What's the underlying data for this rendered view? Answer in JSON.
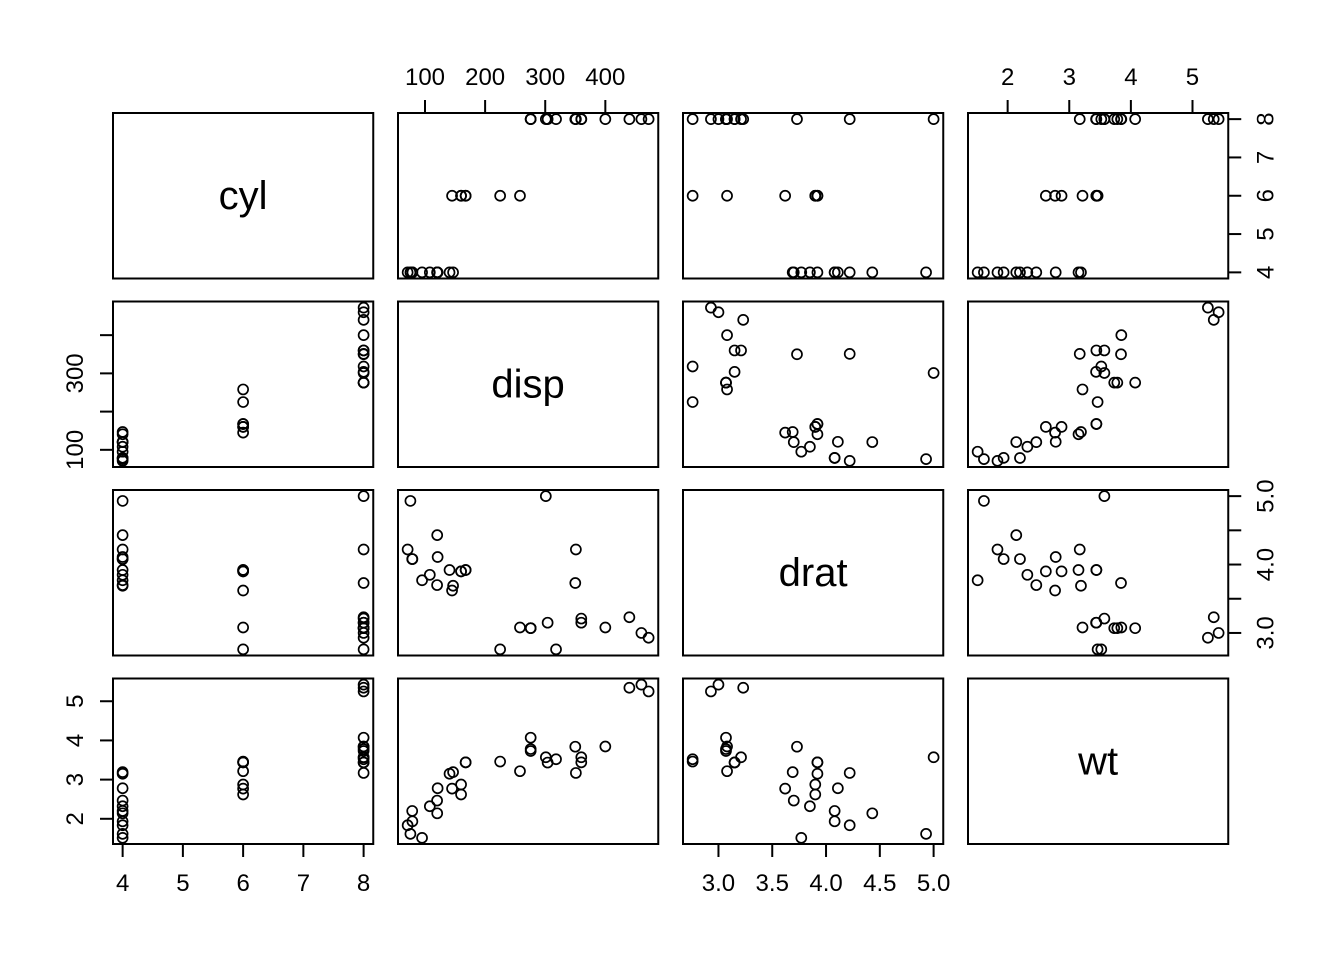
{
  "chart_data": {
    "type": "scatter",
    "layout": "pairs-matrix-4x4",
    "title": "",
    "variables": [
      "cyl",
      "disp",
      "drat",
      "wt"
    ],
    "n_observations": 32,
    "series": {
      "cyl": [
        6,
        6,
        4,
        6,
        8,
        6,
        8,
        4,
        4,
        6,
        6,
        8,
        8,
        8,
        8,
        8,
        8,
        4,
        4,
        4,
        4,
        8,
        8,
        8,
        8,
        4,
        4,
        4,
        8,
        6,
        8,
        4
      ],
      "disp": [
        160,
        160,
        108,
        258,
        360,
        225,
        360,
        146.7,
        140.8,
        167.6,
        167.6,
        275.8,
        275.8,
        275.8,
        472,
        460,
        440,
        78.7,
        75.7,
        71.1,
        120.1,
        318,
        304,
        350,
        400,
        79,
        120.3,
        95.1,
        351,
        145,
        301,
        121
      ],
      "drat": [
        3.9,
        3.9,
        3.85,
        3.08,
        3.15,
        2.76,
        3.21,
        3.69,
        3.92,
        3.92,
        3.92,
        3.07,
        3.07,
        3.07,
        2.93,
        3.0,
        3.23,
        4.08,
        4.93,
        4.22,
        3.7,
        2.76,
        3.15,
        3.73,
        3.08,
        4.08,
        4.43,
        3.77,
        4.22,
        3.62,
        5.0,
        4.11
      ],
      "wt": [
        2.62,
        2.875,
        2.32,
        3.215,
        3.44,
        3.46,
        3.57,
        3.19,
        3.15,
        3.44,
        3.44,
        4.07,
        3.73,
        3.78,
        5.25,
        5.424,
        5.345,
        2.2,
        1.615,
        1.835,
        2.465,
        3.52,
        3.435,
        3.84,
        3.845,
        1.935,
        2.14,
        1.513,
        3.17,
        2.77,
        3.57,
        2.78
      ]
    },
    "axes": {
      "cyl": {
        "lim": [
          3.84,
          8.16
        ],
        "ticks": [
          4,
          5,
          6,
          7,
          8
        ],
        "labels_h": [
          "4",
          "5",
          "6",
          "7",
          "8"
        ],
        "labels_v": [
          "4",
          "5",
          "6",
          "7",
          "8"
        ]
      },
      "disp": {
        "lim": [
          55.064,
          488.036
        ],
        "ticks": [
          100,
          200,
          300,
          400
        ],
        "labels_h": [
          "100",
          "200",
          "300",
          "400"
        ],
        "labels_v": [
          "100",
          "",
          "300",
          ""
        ]
      },
      "drat": {
        "lim": [
          2.6704,
          5.0896
        ],
        "ticks": [
          3,
          3.5,
          4,
          4.5,
          5
        ],
        "labels_h": [
          "3.0",
          "3.5",
          "4.0",
          "4.5",
          "5.0"
        ],
        "labels_v": [
          "3.0",
          "",
          "4.0",
          "",
          "5.0"
        ]
      },
      "wt": {
        "lim": [
          1.35656,
          5.58044
        ],
        "ticks": [
          2,
          3,
          4,
          5
        ],
        "labels_h": [
          "2",
          "3",
          "4",
          "5"
        ],
        "labels_v": [
          "2",
          "3",
          "4",
          "5"
        ]
      }
    },
    "axis_sides": {
      "top_columns": [
        "disp",
        "wt"
      ],
      "bottom_columns": [
        "cyl",
        "drat"
      ],
      "right_rows": [
        "cyl",
        "drat"
      ],
      "left_rows": [
        "disp",
        "wt"
      ]
    },
    "diagonal_labels": [
      "cyl",
      "disp",
      "drat",
      "wt"
    ],
    "point_style": {
      "shape": "open-circle",
      "color": "#000000"
    },
    "grid": "off",
    "legend": "none",
    "colors": {
      "foreground": "#000000",
      "background": "#ffffff"
    }
  }
}
